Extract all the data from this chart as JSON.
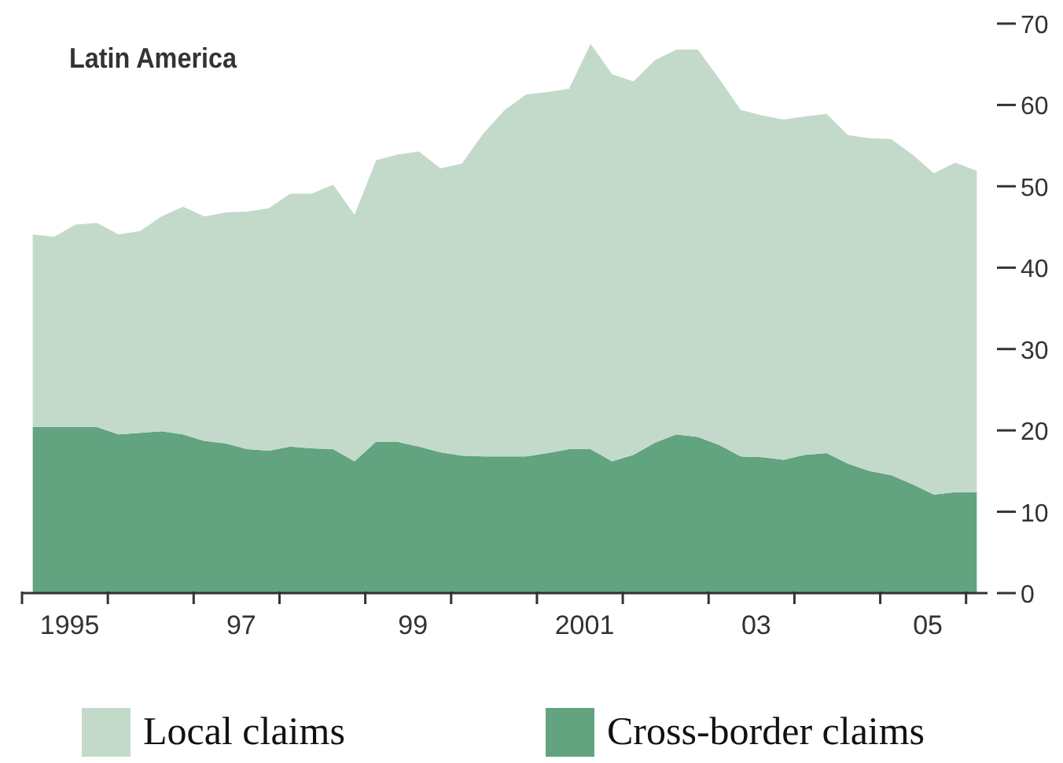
{
  "chart_data": {
    "type": "area",
    "title": "Latin America",
    "stacked": true,
    "x": [
      1994.625,
      1994.875,
      1995.125,
      1995.375,
      1995.625,
      1995.875,
      1996.125,
      1996.375,
      1996.625,
      1996.875,
      1997.125,
      1997.375,
      1997.625,
      1997.875,
      1998.125,
      1998.375,
      1998.625,
      1998.875,
      1999.125,
      1999.375,
      1999.625,
      1999.875,
      2000.125,
      2000.375,
      2000.625,
      2000.875,
      2001.125,
      2001.375,
      2001.625,
      2001.875,
      2002.125,
      2002.375,
      2002.625,
      2002.875,
      2003.125,
      2003.375,
      2003.625,
      2003.875,
      2004.125,
      2004.375,
      2004.625,
      2004.875,
      2005.125,
      2005.375,
      2005.625
    ],
    "series": [
      {
        "name": "Cross-border claims",
        "color": "#62a380",
        "values": [
          20.4,
          20.4,
          20.4,
          20.4,
          19.5,
          19.7,
          19.9,
          19.5,
          18.7,
          18.4,
          17.7,
          17.5,
          18.0,
          17.8,
          17.7,
          16.2,
          18.6,
          18.6,
          18.0,
          17.3,
          16.9,
          16.8,
          16.8,
          16.8,
          17.2,
          17.7,
          17.7,
          16.2,
          17.0,
          18.5,
          19.5,
          19.2,
          18.2,
          16.8,
          16.7,
          16.4,
          17.0,
          17.2,
          15.9,
          15.0,
          14.5,
          13.4,
          12.1,
          12.4,
          12.4
        ]
      },
      {
        "name": "Local claims",
        "color": "#c3dacb",
        "values": [
          23.7,
          23.4,
          24.9,
          25.1,
          24.6,
          24.8,
          26.4,
          28.0,
          27.6,
          28.4,
          29.2,
          29.8,
          31.1,
          31.3,
          32.5,
          30.3,
          34.6,
          35.3,
          36.3,
          34.9,
          35.9,
          39.7,
          42.6,
          44.5,
          44.4,
          44.3,
          49.8,
          47.6,
          45.9,
          47.0,
          47.3,
          47.6,
          45.0,
          42.6,
          42.0,
          41.8,
          41.6,
          41.7,
          40.4,
          40.9,
          41.3,
          40.5,
          39.5,
          40.5,
          39.5
        ]
      }
    ],
    "xlim": [
      1994.5,
      2005.75
    ],
    "xticks": [
      {
        "value": 1994.5,
        "label": null
      },
      1995,
      {
        "value": 1995.5,
        "label": null
      },
      {
        "value": 1996.5,
        "label": null
      },
      {
        "value": 1997,
        "label": "97"
      },
      {
        "value": 1997.5,
        "label": null
      },
      {
        "value": 1998.5,
        "label": null
      },
      {
        "value": 1999,
        "label": "99"
      },
      {
        "value": 1999.5,
        "label": null
      },
      {
        "value": 2000.5,
        "label": null
      },
      2001,
      {
        "value": 2001.5,
        "label": null
      },
      {
        "value": 2002.5,
        "label": null
      },
      {
        "value": 2003,
        "label": "03"
      },
      {
        "value": 2003.5,
        "label": null
      },
      {
        "value": 2004.5,
        "label": null
      },
      {
        "value": 2005,
        "label": "05"
      },
      {
        "value": 2005.5,
        "label": null
      }
    ],
    "ylim": [
      0,
      70
    ],
    "yticks": [
      0,
      10,
      20,
      30,
      40,
      50,
      60,
      70
    ],
    "grid": false,
    "legend": "bottom"
  }
}
